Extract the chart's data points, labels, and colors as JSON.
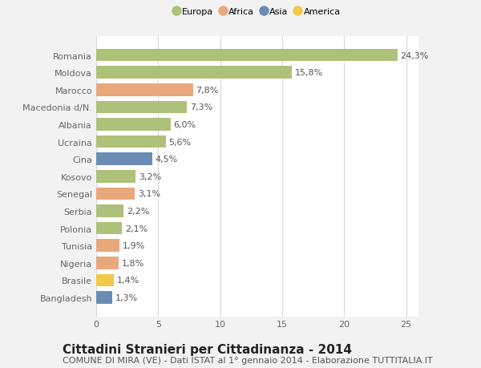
{
  "countries": [
    "Romania",
    "Moldova",
    "Marocco",
    "Macedonia d/N.",
    "Albania",
    "Ucraina",
    "Cina",
    "Kosovo",
    "Senegal",
    "Serbia",
    "Polonia",
    "Tunisia",
    "Nigeria",
    "Brasile",
    "Bangladesh"
  ],
  "values": [
    24.3,
    15.8,
    7.8,
    7.3,
    6.0,
    5.6,
    4.5,
    3.2,
    3.1,
    2.2,
    2.1,
    1.9,
    1.8,
    1.4,
    1.3
  ],
  "labels": [
    "24,3%",
    "15,8%",
    "7,8%",
    "7,3%",
    "6,0%",
    "5,6%",
    "4,5%",
    "3,2%",
    "3,1%",
    "2,2%",
    "2,1%",
    "1,9%",
    "1,8%",
    "1,4%",
    "1,3%"
  ],
  "colors": [
    "#adc178",
    "#adc178",
    "#e8a87c",
    "#adc178",
    "#adc178",
    "#adc178",
    "#6b8db5",
    "#adc178",
    "#e8a87c",
    "#adc178",
    "#adc178",
    "#e8a87c",
    "#e8a87c",
    "#f0c94a",
    "#6b8db5"
  ],
  "continent_colors": {
    "Europa": "#adc178",
    "Africa": "#e8a87c",
    "Asia": "#6b8db5",
    "America": "#f0c94a"
  },
  "title": "Cittadini Stranieri per Cittadinanza - 2014",
  "subtitle": "COMUNE DI MIRA (VE) - Dati ISTAT al 1° gennaio 2014 - Elaborazione TUTTITALIA.IT",
  "xlim": [
    0,
    26
  ],
  "xticks": [
    0,
    5,
    10,
    15,
    20,
    25
  ],
  "background_color": "#f2f2f2",
  "plot_bg_color": "#ffffff",
  "grid_color": "#d8d8d8",
  "title_fontsize": 11,
  "subtitle_fontsize": 8,
  "label_fontsize": 8,
  "tick_fontsize": 8,
  "bar_height": 0.72
}
